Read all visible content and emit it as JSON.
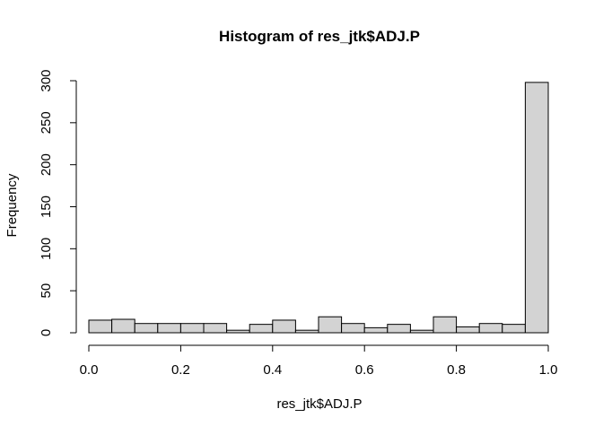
{
  "chart_data": {
    "type": "bar",
    "title": "Histogram of res_jtk$ADJ.P",
    "xlabel": "res_jtk$ADJ.P",
    "ylabel": "Frequency",
    "xlim": [
      0.0,
      1.0
    ],
    "ylim": [
      0,
      300
    ],
    "x_ticks": [
      "0.0",
      "0.2",
      "0.4",
      "0.6",
      "0.8",
      "1.0"
    ],
    "y_ticks": [
      "0",
      "50",
      "100",
      "150",
      "200",
      "250",
      "300"
    ],
    "bin_width": 0.05,
    "bin_starts": [
      0.0,
      0.05,
      0.1,
      0.15,
      0.2,
      0.25,
      0.3,
      0.35,
      0.4,
      0.45,
      0.5,
      0.55,
      0.6,
      0.65,
      0.7,
      0.75,
      0.8,
      0.85,
      0.9,
      0.95
    ],
    "values": [
      15,
      16,
      11,
      11,
      11,
      11,
      3,
      10,
      15,
      3,
      19,
      11,
      6,
      10,
      3,
      19,
      7,
      11,
      10,
      298
    ],
    "grid": false,
    "bar_fill": "#d3d3d3",
    "bar_stroke": "#000000"
  }
}
